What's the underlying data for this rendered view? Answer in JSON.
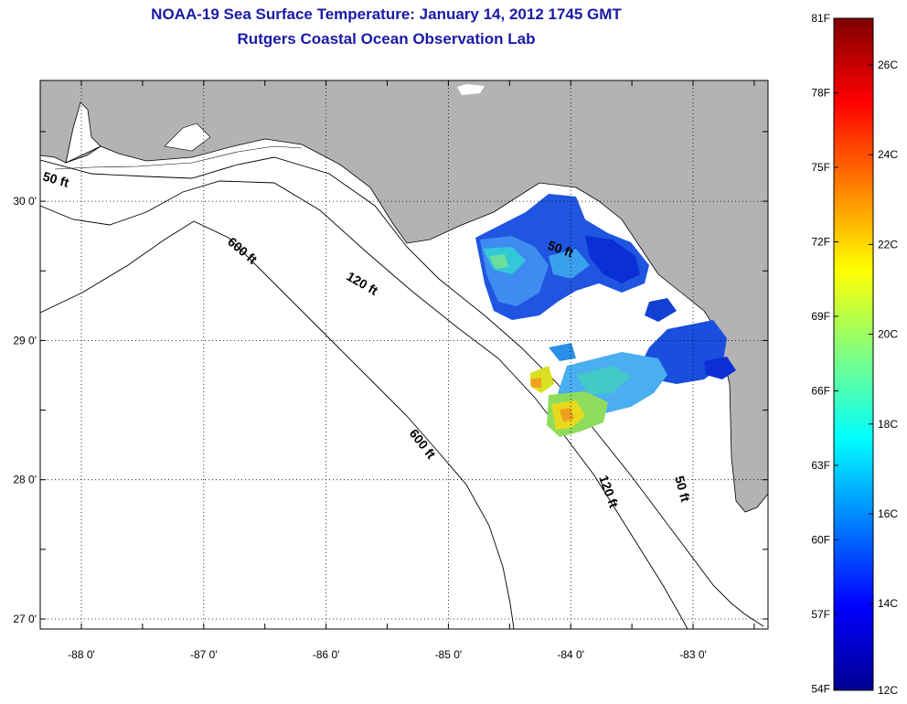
{
  "title": {
    "line1": "NOAA-19 Sea Surface Temperature:  January 14, 2012 1745 GMT",
    "line2": "Rutgers Coastal Ocean Observation Lab"
  },
  "map": {
    "lon_ticks": [
      {
        "lon": -88,
        "label": "-88 0'"
      },
      {
        "lon": -87,
        "label": "-87 0'"
      },
      {
        "lon": -86,
        "label": "-86 0'"
      },
      {
        "lon": -85,
        "label": "-85 0'"
      },
      {
        "lon": -84,
        "label": "-84 0'"
      },
      {
        "lon": -83,
        "label": "-83 0'"
      }
    ],
    "lat_ticks": [
      {
        "lat": 30,
        "label": "30 0'"
      },
      {
        "lat": 29,
        "label": "29 0'"
      },
      {
        "lat": 28,
        "label": "28 0'"
      },
      {
        "lat": 27,
        "label": "27 0'"
      }
    ],
    "contour_labels": {
      "c50a": "50 ft",
      "c600a": "600 ft",
      "c120a": "120 ft",
      "c50b": "50 ft",
      "c600b": "600 ft",
      "c120b": "120 ft",
      "c50c": "50 ft"
    },
    "colors": {
      "land": "#b3b3b3",
      "ocean": "#ffffff",
      "title": "#1a1aa6"
    }
  },
  "colorbar": {
    "fahrenheit": [
      "81F",
      "78F",
      "75F",
      "72F",
      "69F",
      "66F",
      "63F",
      "60F",
      "57F",
      "54F"
    ],
    "celsius": [
      "26C",
      "24C",
      "22C",
      "20C",
      "18C",
      "16C",
      "14C",
      "12C"
    ]
  }
}
